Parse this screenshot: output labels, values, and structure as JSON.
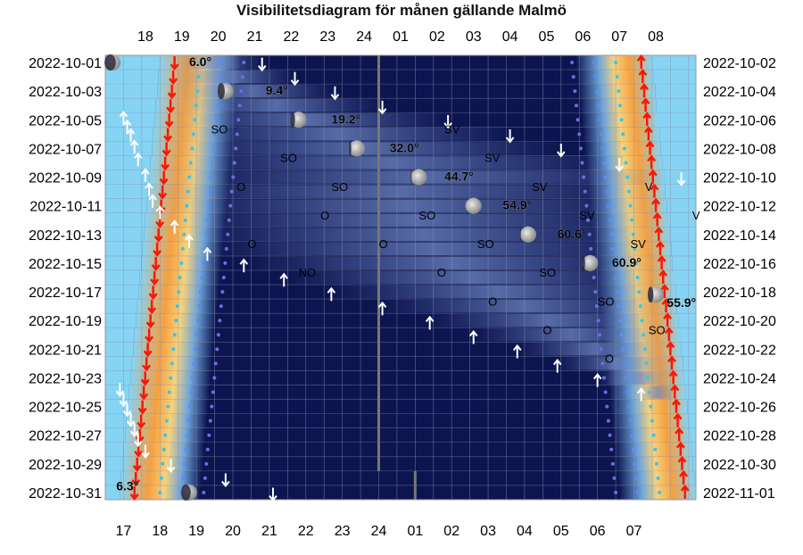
{
  "title": "Visibilitetsdiagram för månen gällande Malmö",
  "chart_data": {
    "type": "visibility-diagram",
    "title": "Visibilitetsdiagram för månen gällande Malmö",
    "top_hour_labels": [
      "18",
      "19",
      "20",
      "21",
      "22",
      "23",
      "24",
      "01",
      "02",
      "03",
      "04",
      "05",
      "06",
      "07",
      "08"
    ],
    "bottom_hour_labels": [
      "17",
      "18",
      "19",
      "20",
      "21",
      "22",
      "23",
      "24",
      "01",
      "02",
      "03",
      "04",
      "05",
      "06",
      "07"
    ],
    "left_dates": [
      "2022-10-01",
      "2022-10-03",
      "2022-10-05",
      "2022-10-07",
      "2022-10-09",
      "2022-10-11",
      "2022-10-13",
      "2022-10-15",
      "2022-10-17",
      "2022-10-19",
      "2022-10-21",
      "2022-10-23",
      "2022-10-25",
      "2022-10-27",
      "2022-10-29",
      "2022-10-31"
    ],
    "right_dates": [
      "2022-10-02",
      "2022-10-04",
      "2022-10-06",
      "2022-10-08",
      "2022-10-10",
      "2022-10-12",
      "2022-10-14",
      "2022-10-16",
      "2022-10-18",
      "2022-10-20",
      "2022-10-22",
      "2022-10-24",
      "2022-10-26",
      "2022-10-28",
      "2022-10-30",
      "2022-11-01"
    ],
    "max_altitude_labels": [
      {
        "day": 1,
        "hour": 18.8,
        "text": "6.0°"
      },
      {
        "day": 3,
        "hour": 20.9,
        "text": "9.4°"
      },
      {
        "day": 5,
        "hour": 22.7,
        "text": "19.2°"
      },
      {
        "day": 7,
        "hour": 24.3,
        "text": "32.0°"
      },
      {
        "day": 9,
        "hour": 25.8,
        "text": "44.7°"
      },
      {
        "day": 11,
        "hour": 27.4,
        "text": "54.9°"
      },
      {
        "day": 13,
        "hour": 28.9,
        "text": "60.6°"
      },
      {
        "day": 15,
        "hour": 30.4,
        "text": "60.9°"
      },
      {
        "day": 17.8,
        "hour": 31.9,
        "text": "55.9°"
      },
      {
        "day": 30.6,
        "hour": 16.8,
        "text": "6.3°"
      }
    ],
    "compass_labels": [
      {
        "day": 5.7,
        "hour": 19.4,
        "text": "SO"
      },
      {
        "day": 5.7,
        "hour": 25.8,
        "text": "SV"
      },
      {
        "day": 7.7,
        "hour": 21.3,
        "text": "SO"
      },
      {
        "day": 7.7,
        "hour": 26.9,
        "text": "SV"
      },
      {
        "day": 9.7,
        "hour": 20.1,
        "text": "O"
      },
      {
        "day": 9.7,
        "hour": 22.7,
        "text": "SO"
      },
      {
        "day": 9.7,
        "hour": 28.2,
        "text": "SV"
      },
      {
        "day": 9.7,
        "hour": 31.3,
        "text": "V"
      },
      {
        "day": 11.7,
        "hour": 22.4,
        "text": "O"
      },
      {
        "day": 11.7,
        "hour": 25.1,
        "text": "SO"
      },
      {
        "day": 11.7,
        "hour": 29.5,
        "text": "SV"
      },
      {
        "day": 11.7,
        "hour": 32.6,
        "text": "V"
      },
      {
        "day": 13.7,
        "hour": 20.4,
        "text": "O"
      },
      {
        "day": 13.7,
        "hour": 24.0,
        "text": "O"
      },
      {
        "day": 13.7,
        "hour": 26.7,
        "text": "SO"
      },
      {
        "day": 13.7,
        "hour": 30.9,
        "text": "SV"
      },
      {
        "day": 15.7,
        "hour": 21.8,
        "text": "NO"
      },
      {
        "day": 15.7,
        "hour": 25.6,
        "text": "O"
      },
      {
        "day": 15.7,
        "hour": 28.4,
        "text": "SO"
      },
      {
        "day": 17.7,
        "hour": 27.0,
        "text": "O"
      },
      {
        "day": 17.7,
        "hour": 30.0,
        "text": "SO"
      },
      {
        "day": 19.7,
        "hour": 28.5,
        "text": "O"
      },
      {
        "day": 19.7,
        "hour": 31.4,
        "text": "SO"
      },
      {
        "day": 21.7,
        "hour": 30.2,
        "text": "O"
      }
    ],
    "moonrise_arrows": [
      {
        "day": 4.9,
        "hour": 17.0
      },
      {
        "day": 5.5,
        "hour": 17.1
      },
      {
        "day": 6.1,
        "hour": 17.2
      },
      {
        "day": 6.9,
        "hour": 17.3
      },
      {
        "day": 7.8,
        "hour": 17.4
      },
      {
        "day": 8.9,
        "hour": 17.6
      },
      {
        "day": 9.9,
        "hour": 17.7
      },
      {
        "day": 10.7,
        "hour": 17.8
      },
      {
        "day": 11.5,
        "hour": 18.0
      },
      {
        "day": 12.5,
        "hour": 18.4
      },
      {
        "day": 13.5,
        "hour": 18.8
      },
      {
        "day": 14.4,
        "hour": 19.3
      },
      {
        "day": 15.2,
        "hour": 20.3
      },
      {
        "day": 16.2,
        "hour": 21.4
      },
      {
        "day": 17.2,
        "hour": 22.7
      },
      {
        "day": 18.2,
        "hour": 24.1
      },
      {
        "day": 19.2,
        "hour": 25.4
      },
      {
        "day": 20.2,
        "hour": 26.6
      },
      {
        "day": 21.2,
        "hour": 27.8
      },
      {
        "day": 22.2,
        "hour": 28.9
      },
      {
        "day": 23.2,
        "hour": 30.0
      },
      {
        "day": 24.2,
        "hour": 31.2
      }
    ],
    "moonset_arrows": [
      {
        "day": 1.1,
        "hour": 20.8
      },
      {
        "day": 2.1,
        "hour": 21.7
      },
      {
        "day": 3.1,
        "hour": 22.8
      },
      {
        "day": 4.1,
        "hour": 24.1
      },
      {
        "day": 5.1,
        "hour": 25.9
      },
      {
        "day": 6.1,
        "hour": 27.6
      },
      {
        "day": 7.1,
        "hour": 29.0
      },
      {
        "day": 8.1,
        "hour": 30.6
      },
      {
        "day": 9.1,
        "hour": 32.3
      },
      {
        "day": 23.8,
        "hour": 16.9
      },
      {
        "day": 24.5,
        "hour": 17.0
      },
      {
        "day": 25.2,
        "hour": 17.1
      },
      {
        "day": 25.9,
        "hour": 17.2
      },
      {
        "day": 26.6,
        "hour": 17.3
      },
      {
        "day": 27.3,
        "hour": 17.4
      },
      {
        "day": 28.1,
        "hour": 17.6
      },
      {
        "day": 29.1,
        "hour": 18.3
      },
      {
        "day": 30.1,
        "hour": 19.8
      },
      {
        "day": 31.1,
        "hour": 21.1
      }
    ],
    "moon_phases": [
      {
        "day": 1,
        "hour": 16.7,
        "illum": 0.3
      },
      {
        "day": 3,
        "hour": 19.8,
        "illum": 0.55
      },
      {
        "day": 5,
        "hour": 21.8,
        "illum": 0.72
      },
      {
        "day": 7,
        "hour": 23.4,
        "illum": 0.85
      },
      {
        "day": 9,
        "hour": 25.1,
        "illum": 0.95
      },
      {
        "day": 11,
        "hour": 26.6,
        "illum": 0.99
      },
      {
        "day": 13,
        "hour": 28.1,
        "illum": 0.96
      },
      {
        "day": 15,
        "hour": 29.8,
        "illum": 0.82
      },
      {
        "day": 17.2,
        "hour": 31.6,
        "illum": 0.65
      },
      {
        "day": 31,
        "hour": 18.8,
        "illum": 0.4
      }
    ],
    "sunset_hour_start": 18.4,
    "sunset_hour_end": 17.3,
    "sunrise_hour_start": 31.2,
    "sunrise_hour_end": 32.4,
    "colors": {
      "night": "#0d1550",
      "twilight": "#2a4aa8",
      "day": "#87d3f4",
      "sun_glow": "#f5a040",
      "moon_path": "#5d78b8",
      "sun_arrow": "#ff1500",
      "moon_arrow": "#ffffff"
    }
  }
}
